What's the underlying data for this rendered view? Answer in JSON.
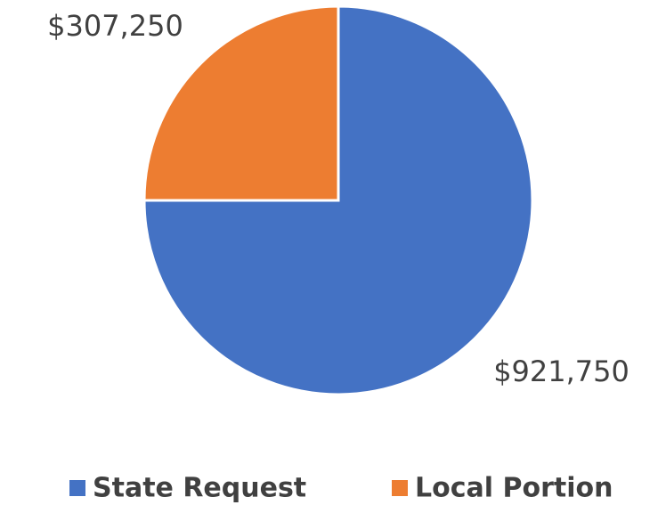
{
  "chart_data": {
    "type": "pie",
    "categories": [
      "State Request",
      "Local Portion"
    ],
    "values": [
      921750,
      307250
    ],
    "value_labels": [
      "$921,750",
      "$307,250"
    ],
    "colors": [
      "#4472c4",
      "#ed7d31"
    ],
    "legend": "bottom"
  }
}
